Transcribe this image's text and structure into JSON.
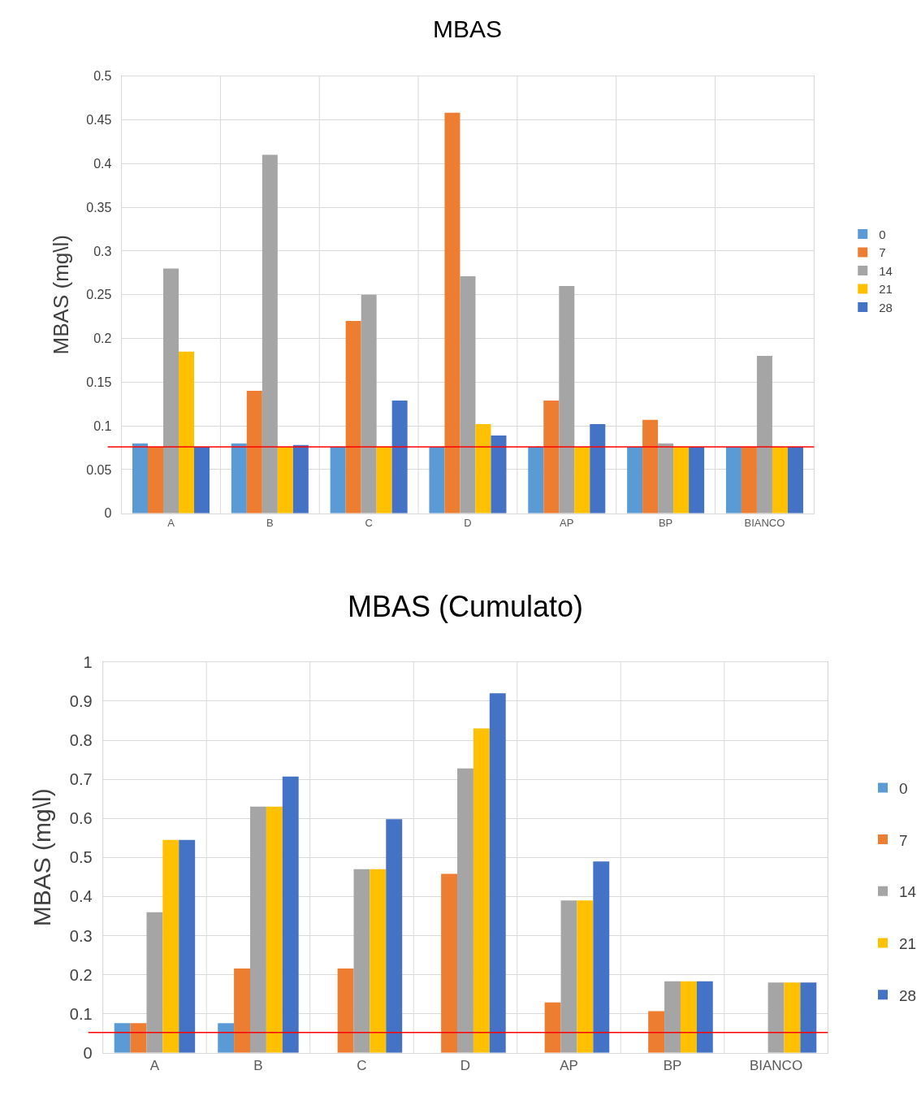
{
  "chart_data": [
    {
      "type": "bar",
      "title": "MBAS",
      "ylabel": "MBAS (mg\\l)",
      "categories": [
        "A",
        "B",
        "C",
        "D",
        "AP",
        "BP",
        "BIANCO"
      ],
      "series": [
        {
          "name": "0",
          "color": "#5b9bd5",
          "values": [
            0.08,
            0.08,
            0.076,
            0.076,
            0.076,
            0.076,
            0.076
          ]
        },
        {
          "name": "7",
          "color": "#ed7d31",
          "values": [
            0.076,
            0.14,
            0.22,
            0.458,
            0.129,
            0.107,
            0.076
          ]
        },
        {
          "name": "14",
          "color": "#a5a5a5",
          "values": [
            0.28,
            0.41,
            0.25,
            0.271,
            0.26,
            0.08,
            0.18
          ]
        },
        {
          "name": "21",
          "color": "#ffc000",
          "values": [
            0.185,
            0.076,
            0.076,
            0.102,
            0.076,
            0.076,
            0.076
          ]
        },
        {
          "name": "28",
          "color": "#4472c4",
          "values": [
            0.076,
            0.078,
            0.129,
            0.089,
            0.102,
            0.076,
            0.076
          ]
        }
      ],
      "ylim": [
        0,
        0.5
      ],
      "yticks": [
        0,
        0.05,
        0.1,
        0.15,
        0.2,
        0.25,
        0.3,
        0.35,
        0.4,
        0.45,
        0.5
      ],
      "grid": true,
      "legend": "right",
      "ref_lines": [
        {
          "axis": "y",
          "value": 0.076,
          "color": "#ff0000"
        }
      ]
    },
    {
      "type": "bar",
      "title": "MBAS (Cumulato)",
      "ylabel": "MBAS (mg\\l)",
      "categories": [
        "A",
        "B",
        "C",
        "D",
        "AP",
        "BP",
        "BIANCO"
      ],
      "series": [
        {
          "name": "0",
          "color": "#5b9bd5",
          "values": [
            0.076,
            0.076,
            null,
            null,
            null,
            null,
            null
          ]
        },
        {
          "name": "7",
          "color": "#ed7d31",
          "values": [
            0.076,
            0.216,
            0.216,
            0.458,
            0.129,
            0.107,
            null
          ]
        },
        {
          "name": "14",
          "color": "#a5a5a5",
          "values": [
            0.36,
            0.63,
            0.47,
            0.728,
            0.39,
            0.183,
            0.18
          ]
        },
        {
          "name": "21",
          "color": "#ffc000",
          "values": [
            0.545,
            0.63,
            0.47,
            0.83,
            0.39,
            0.183,
            0.18
          ]
        },
        {
          "name": "28",
          "color": "#4472c4",
          "values": [
            0.545,
            0.707,
            0.598,
            0.92,
            0.49,
            0.183,
            0.18
          ]
        }
      ],
      "ylim": [
        0,
        1
      ],
      "yticks": [
        0,
        0.1,
        0.2,
        0.3,
        0.4,
        0.5,
        0.6,
        0.7,
        0.8,
        0.9,
        1
      ],
      "grid": true,
      "legend": "right",
      "ref_lines": [
        {
          "axis": "y",
          "value": 0.052,
          "color": "#ff0000"
        }
      ]
    }
  ]
}
